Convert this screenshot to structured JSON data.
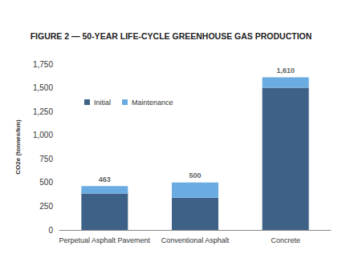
{
  "chart_data": {
    "type": "bar",
    "stacked": true,
    "title": "FIGURE 2 — 50-YEAR LIFE-CYCLE GREENHOUSE GAS PRODUCTION",
    "y_label": "CO2e (tonnes/km)",
    "categories": [
      "Perpetual Asphalt Pavement",
      "Conventional Asphalt",
      "Concrete"
    ],
    "series": [
      {
        "name": "Initial",
        "color": "#3e6287",
        "values": [
          385,
          340,
          1500
        ]
      },
      {
        "name": "Maintenance",
        "color": "#6aabe2",
        "values": [
          78,
          160,
          110
        ]
      }
    ],
    "totals": [
      463,
      500,
      1610
    ],
    "total_labels": [
      "463",
      "500",
      "1,610"
    ],
    "ylim": [
      0,
      1750
    ],
    "yticks": [
      0,
      250,
      500,
      750,
      {
        "value": 1000,
        "label": "1,000"
      },
      {
        "value": 1250,
        "label": "1,250"
      },
      {
        "value": 1500,
        "label": "1,500"
      },
      {
        "value": 1750,
        "label": "1,750"
      }
    ],
    "grid": false,
    "legend": "upper left"
  }
}
